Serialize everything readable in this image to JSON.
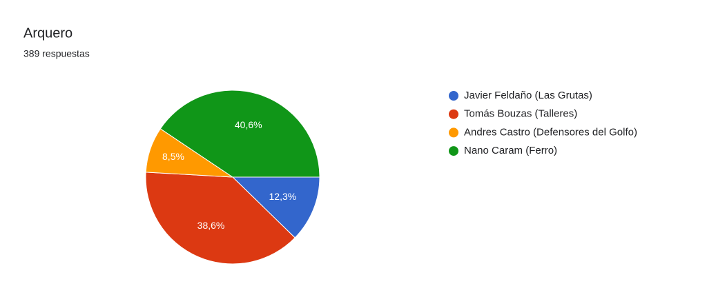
{
  "chart_data": {
    "type": "pie",
    "title": "Arquero",
    "subtitle": "389 respuestas",
    "categories": [
      "Javier Feldaño (Las Grutas)",
      "Tomás Bouzas (Talleres)",
      "Andres Castro (Defensores del Golfo)",
      "Nano Caram (Ferro)"
    ],
    "values": [
      12.3,
      38.6,
      8.5,
      40.6
    ],
    "value_labels": [
      "12,3%",
      "38,6%",
      "8,5%",
      "40,6%"
    ],
    "colors": [
      "#3366cc",
      "#dc3912",
      "#ff9900",
      "#109618"
    ],
    "legend": "right"
  }
}
